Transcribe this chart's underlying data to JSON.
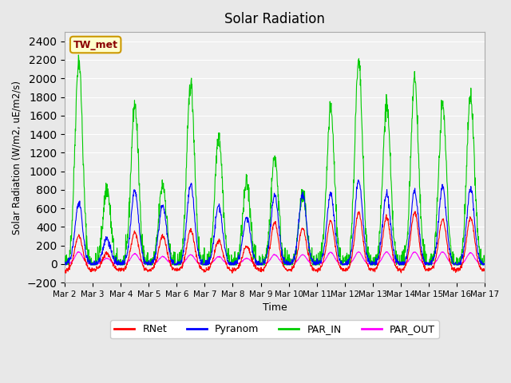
{
  "title": "Solar Radiation",
  "ylabel": "Solar Radiation (W/m2, uE/m2/s)",
  "xlabel": "Time",
  "ylim": [
    -200,
    2500
  ],
  "yticks": [
    -200,
    0,
    200,
    400,
    600,
    800,
    1000,
    1200,
    1400,
    1600,
    1800,
    2000,
    2200,
    2400
  ],
  "bg_color": "#e8e8e8",
  "plot_bg_color": "#f0f0f0",
  "colors": {
    "RNet": "#ff0000",
    "Pyranom": "#0000ff",
    "PAR_IN": "#00cc00",
    "PAR_OUT": "#ff00ff"
  },
  "station_label": "TW_met",
  "station_label_bg": "#ffffcc",
  "station_label_border": "#cc9900",
  "xtick_labels": [
    "Mar 2",
    "Mar 3",
    "Mar 4",
    "Mar 5",
    "Mar 6",
    "Mar 7",
    "Mar 8",
    "Mar 9",
    "Mar 10",
    "Mar 11",
    "Mar 12",
    "Mar 13",
    "Mar 14",
    "Mar 15",
    "Mar 16",
    "Mar 17"
  ],
  "par_in_peaks": [
    2200,
    820,
    1720,
    860,
    1950,
    1400,
    870,
    1150,
    750,
    1660,
    2160,
    1720,
    2000,
    1710,
    1790,
    1760
  ],
  "pyranom_peaks": [
    650,
    280,
    790,
    640,
    860,
    630,
    500,
    745,
    760,
    760,
    905,
    760,
    785,
    825,
    810,
    775
  ],
  "rnet_peaks": [
    300,
    120,
    340,
    300,
    360,
    250,
    190,
    445,
    380,
    465,
    560,
    500,
    560,
    480,
    505,
    560
  ],
  "par_out_peaks": [
    130,
    60,
    110,
    80,
    100,
    80,
    60,
    100,
    100,
    125,
    130,
    130,
    130,
    130,
    120,
    110
  ]
}
